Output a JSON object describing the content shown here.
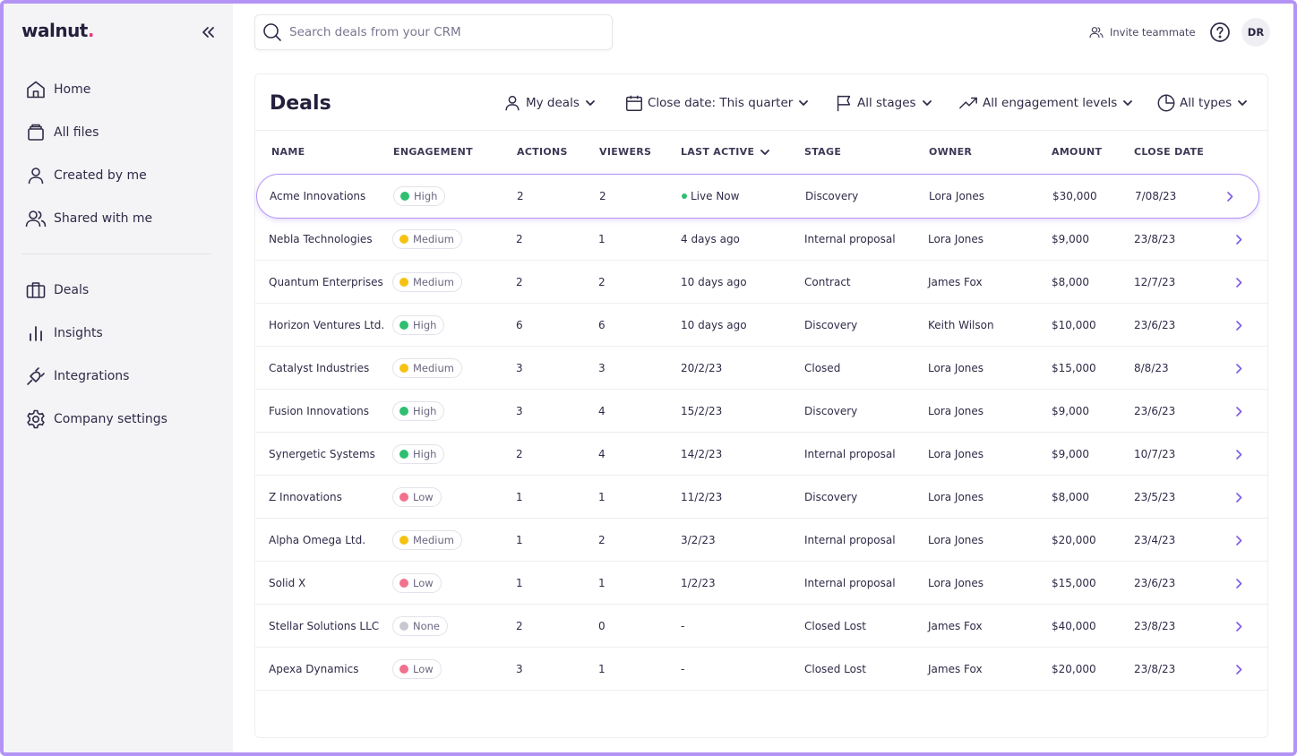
{
  "brand": {
    "name": "walnut",
    "dot": ".",
    "accent": "#b394f5",
    "dot_color": "#e8397a"
  },
  "sidebar": {
    "collapse_icon": "double-chevron-left-icon",
    "items": [
      {
        "label": "Home",
        "icon": "home-icon"
      },
      {
        "label": "All files",
        "icon": "folder-icon"
      },
      {
        "label": "Created by me",
        "icon": "user-icon"
      },
      {
        "label": "Shared with me",
        "icon": "users-icon"
      },
      {
        "label": "Deals",
        "icon": "briefcase-icon"
      },
      {
        "label": "Insights",
        "icon": "bar-chart-icon"
      },
      {
        "label": "Integrations",
        "icon": "plug-icon"
      },
      {
        "label": "Company settings",
        "icon": "gear-icon"
      }
    ]
  },
  "header": {
    "search_placeholder": "Search deals from your CRM",
    "invite_label": "Invite teammate",
    "avatar_initials": "DR"
  },
  "deals": {
    "title": "Deals",
    "filters": [
      {
        "label": "My deals",
        "icon": "user-icon"
      },
      {
        "label": "Close date: This quarter",
        "icon": "calendar-icon"
      },
      {
        "label": "All stages",
        "icon": "flag-icon"
      },
      {
        "label": "All engagement levels",
        "icon": "trending-up-icon"
      },
      {
        "label": "All types",
        "icon": "pie-chart-icon"
      }
    ],
    "columns": {
      "name": "NAME",
      "engagement": "ENGAGEMENT",
      "actions": "ACTIONS",
      "viewers": "VIEWERS",
      "last_active": "LAST ACTIVE",
      "stage": "STAGE",
      "owner": "OWNER",
      "amount": "AMOUNT",
      "close_date": "CLOSE DATE"
    },
    "engagement_colors": {
      "High": "#2fbf71",
      "Medium": "#f5c211",
      "Low": "#f2718e",
      "None": "#c9c7d2"
    },
    "live_color": "#2fbf71",
    "rows": [
      {
        "name": "Acme Innovations",
        "engagement": "High",
        "actions": "2",
        "viewers": "2",
        "last_active": "Live Now",
        "live": true,
        "stage": "Discovery",
        "owner": "Lora Jones",
        "amount": "$30,000",
        "close_date": "7/08/23"
      },
      {
        "name": "Nebla Technologies",
        "engagement": "Medium",
        "actions": "2",
        "viewers": "1",
        "last_active": "4 days ago",
        "stage": "Internal proposal",
        "owner": "Lora Jones",
        "amount": "$9,000",
        "close_date": "23/8/23"
      },
      {
        "name": "Quantum Enterprises",
        "engagement": "Medium",
        "actions": "2",
        "viewers": "2",
        "last_active": "10 days ago",
        "stage": "Contract",
        "owner": "James Fox",
        "amount": "$8,000",
        "close_date": "12/7/23"
      },
      {
        "name": "Horizon Ventures Ltd.",
        "engagement": "High",
        "actions": "6",
        "viewers": "6",
        "last_active": "10 days ago",
        "stage": "Discovery",
        "owner": "Keith Wilson",
        "amount": "$10,000",
        "close_date": "23/6/23"
      },
      {
        "name": "Catalyst Industries",
        "engagement": "Medium",
        "actions": "3",
        "viewers": "3",
        "last_active": "20/2/23",
        "stage": "Closed",
        "owner": "Lora Jones",
        "amount": "$15,000",
        "close_date": "8/8/23"
      },
      {
        "name": "Fusion Innovations",
        "engagement": "High",
        "actions": "3",
        "viewers": "4",
        "last_active": "15/2/23",
        "stage": "Discovery",
        "owner": "Lora Jones",
        "amount": "$9,000",
        "close_date": "23/6/23"
      },
      {
        "name": "Synergetic Systems",
        "engagement": "High",
        "actions": "2",
        "viewers": "4",
        "last_active": "14/2/23",
        "stage": "Internal proposal",
        "owner": "Lora Jones",
        "amount": "$9,000",
        "close_date": "10/7/23"
      },
      {
        "name": "Z Innovations",
        "engagement": "Low",
        "actions": "1",
        "viewers": "1",
        "last_active": "11/2/23",
        "stage": "Discovery",
        "owner": "Lora Jones",
        "amount": "$8,000",
        "close_date": "23/5/23"
      },
      {
        "name": "Alpha Omega Ltd.",
        "engagement": "Medium",
        "actions": "1",
        "viewers": "2",
        "last_active": "3/2/23",
        "stage": "Internal proposal",
        "owner": "Lora Jones",
        "amount": "$20,000",
        "close_date": "23/4/23"
      },
      {
        "name": "Solid X",
        "engagement": "Low",
        "actions": "1",
        "viewers": "1",
        "last_active": "1/2/23",
        "stage": "Internal proposal",
        "owner": "Lora Jones",
        "amount": "$15,000",
        "close_date": "23/6/23"
      },
      {
        "name": "Stellar Solutions LLC",
        "engagement": "None",
        "actions": "2",
        "viewers": "0",
        "last_active": "-",
        "stage": "Closed Lost",
        "owner": "James Fox",
        "amount": "$40,000",
        "close_date": "23/8/23"
      },
      {
        "name": "Apexa Dynamics",
        "engagement": "Low",
        "actions": "3",
        "viewers": "1",
        "last_active": "-",
        "stage": "Closed Lost",
        "owner": "James Fox",
        "amount": "$20,000",
        "close_date": "23/8/23"
      }
    ]
  }
}
